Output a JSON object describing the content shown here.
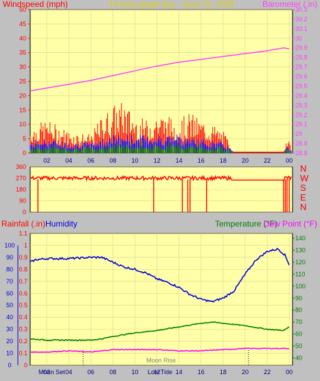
{
  "header": {
    "left_label": "Windspeed (mph)",
    "title": "24 hour graph day - June 01, 2025",
    "right_label": "Barometer (.in)"
  },
  "bottom_header": {
    "rainfall_label": "Rainfall (.in)",
    "humidity_label": "Humidity",
    "temperature_label": "Temperature (°F)",
    "dewpoint_label": "Dew Point (°F)"
  },
  "x_ticks": [
    "02",
    "04",
    "06",
    "08",
    "10",
    "12",
    "14",
    "16",
    "18",
    "20",
    "22",
    "00"
  ],
  "wind_axis": [
    "0",
    "5",
    "10",
    "15",
    "20",
    "25",
    "30",
    "35",
    "40",
    "45",
    "50"
  ],
  "baro_axis": [
    "28.8",
    "28.9",
    "29",
    "29.1",
    "29.2",
    "29.3",
    "29.4",
    "29.5",
    "29.6",
    "29.7",
    "29.8",
    "29.9",
    "30",
    "30.1",
    "30.2",
    "30.3"
  ],
  "dir_axis": [
    "0",
    "90",
    "180",
    "270",
    "360"
  ],
  "dir_letters": [
    "N",
    "W",
    "S",
    "E",
    "N"
  ],
  "humidity_axis": [
    "0",
    "10",
    "20",
    "30",
    "40",
    "50",
    "60",
    "70",
    "80",
    "90",
    "100"
  ],
  "rain_axis": [
    "0",
    "0.1",
    "0.2",
    "0.3",
    "0.4",
    "0.5",
    "0.6",
    "0.7",
    "0.8",
    "0.9",
    "1",
    "1.1"
  ],
  "temp_axis": [
    "40",
    "50",
    "60",
    "70",
    "80",
    "90",
    "100",
    "110",
    "120",
    "130",
    "140"
  ],
  "bottom_notes": {
    "moon_set": "Moon Set",
    "low_tide": "Low Tide",
    "moon_rise": "Moon Rise"
  },
  "colors": {
    "plot_bg": "#ffffa8",
    "wind_gust": "#ff0000",
    "wind_avg": "#0000ff",
    "wind_low": "#008000",
    "barometer": "#ff40ff",
    "direction": "#ff0000",
    "humidity": "#0000e0",
    "temperature": "#008000",
    "dewpoint": "#ff00ff"
  },
  "chart_data": [
    {
      "type": "bar",
      "name": "wind",
      "x_unit": "hour",
      "x_range": [
        0.5,
        24.3
      ],
      "ylim": [
        0,
        50
      ],
      "gust_profile": {
        "hours": [
          0.5,
          2,
          4,
          6,
          7,
          8,
          9,
          10,
          11,
          12,
          13,
          14,
          15,
          16,
          17,
          18,
          18.8,
          19,
          23.5,
          23.8,
          24.1
        ],
        "values": [
          7,
          9,
          6,
          5,
          10,
          13,
          14,
          10,
          9,
          11,
          10,
          9,
          11,
          9,
          8,
          6,
          2,
          0,
          0,
          6,
          2
        ]
      },
      "avg_profile": {
        "hours": [
          0.5,
          2,
          4,
          6,
          8,
          10,
          12,
          14,
          16,
          18,
          18.8,
          19,
          23.5,
          23.8,
          24.1
        ],
        "values": [
          3,
          4,
          3,
          3,
          5,
          5,
          5,
          5,
          4,
          3,
          1,
          0,
          0,
          3,
          1
        ]
      }
    },
    {
      "type": "line",
      "name": "barometer",
      "ylim": [
        28.8,
        30.3
      ],
      "x": [
        0.5,
        2,
        4,
        6,
        8,
        10,
        12,
        14,
        16,
        18,
        20,
        22,
        23.5,
        24
      ],
      "values": [
        29.45,
        29.48,
        29.52,
        29.56,
        29.61,
        29.66,
        29.71,
        29.75,
        29.78,
        29.81,
        29.84,
        29.87,
        29.9,
        29.89
      ]
    },
    {
      "type": "scatter",
      "name": "wind direction",
      "ylim": [
        0,
        360
      ],
      "base_direction": 270,
      "calm_from_hour": 18.8,
      "calm_value": 255,
      "drops_to_zero_hours": [
        1.2,
        11.7,
        14.3,
        14.8,
        15.0,
        16.5,
        23.5,
        23.65,
        23.8,
        24.0
      ]
    },
    {
      "type": "line",
      "name": "humidity",
      "ylim": [
        0,
        100
      ],
      "x": [
        0.5,
        1,
        2,
        4,
        6,
        7,
        8,
        9,
        10,
        11,
        12,
        13,
        14,
        15,
        16,
        17,
        18,
        19,
        20,
        21,
        22,
        23,
        23.6,
        24
      ],
      "values": [
        86,
        88,
        89,
        89,
        90,
        90,
        86,
        82,
        80,
        77,
        72,
        69,
        65,
        59,
        55,
        53,
        56,
        62,
        76,
        88,
        95,
        97,
        92,
        84
      ]
    },
    {
      "type": "line",
      "name": "temperature",
      "ylim": [
        40,
        140
      ],
      "x": [
        0.5,
        2,
        4,
        6,
        7,
        8,
        10,
        12,
        14,
        16,
        17,
        18,
        20,
        22,
        23.5,
        24
      ],
      "values": [
        56,
        55,
        55,
        55,
        56,
        58,
        61,
        63,
        66,
        69,
        70,
        69,
        67,
        64,
        63,
        66
      ]
    },
    {
      "type": "line",
      "name": "dew point",
      "ylim": [
        40,
        140
      ],
      "x": [
        0.5,
        2,
        4,
        6,
        8,
        10,
        12,
        14,
        16,
        18,
        20,
        22,
        24
      ],
      "values": [
        45,
        45,
        46,
        45,
        47,
        47,
        47,
        46,
        46,
        47,
        48,
        48,
        48
      ]
    }
  ]
}
